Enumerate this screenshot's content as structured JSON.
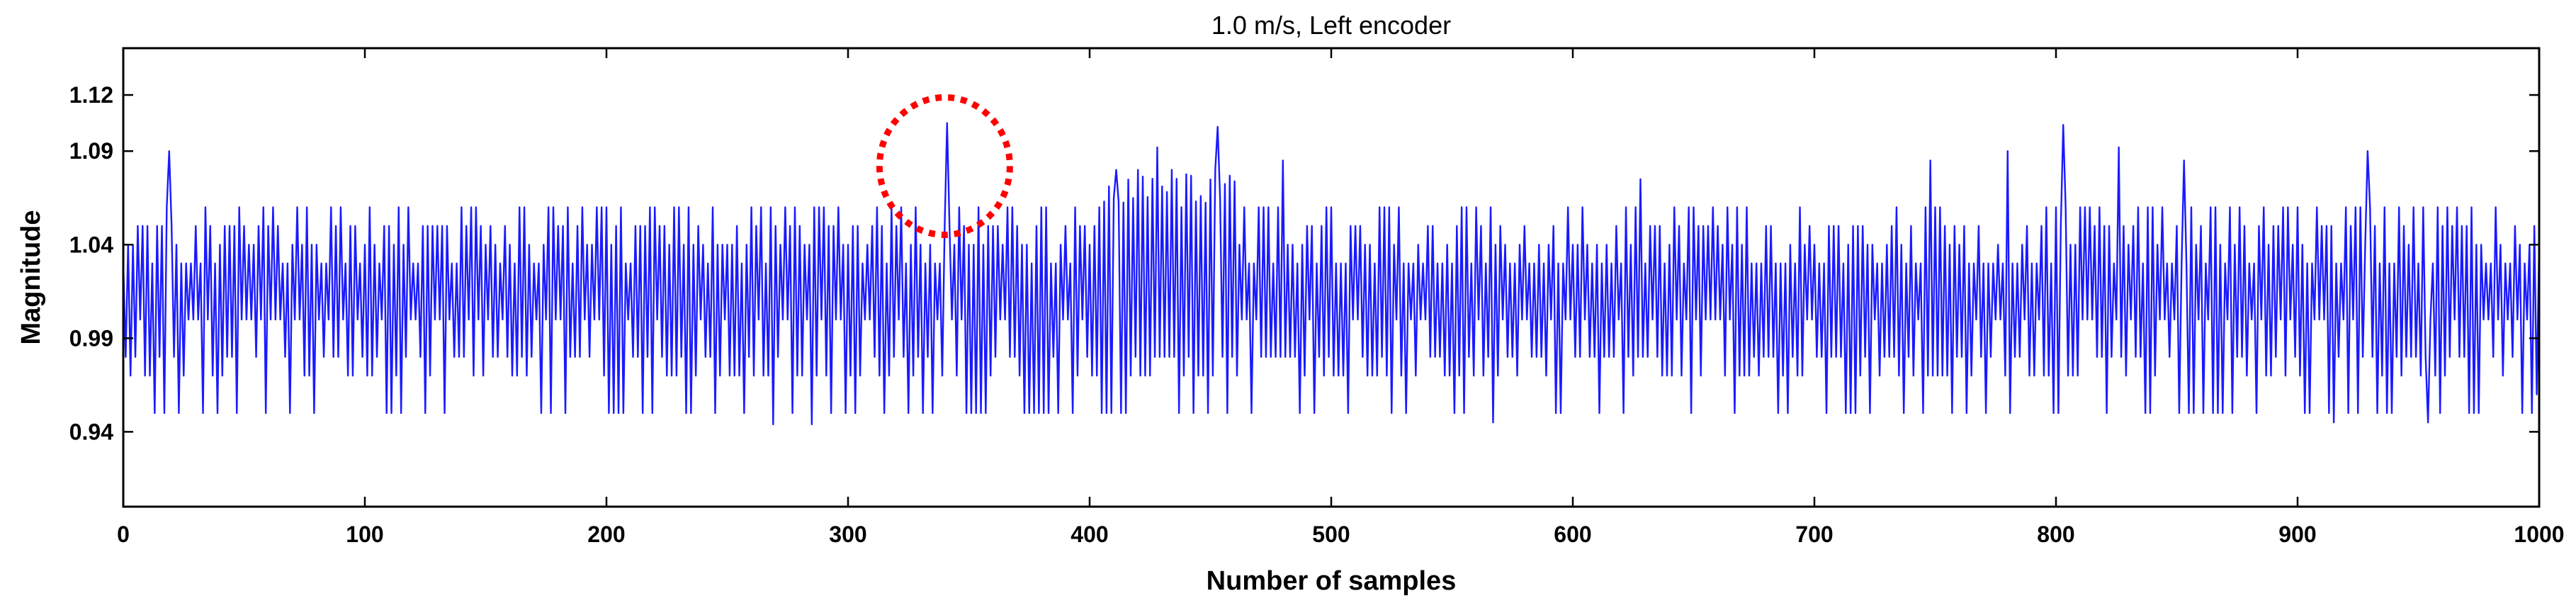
{
  "chart_data": {
    "type": "line",
    "title": "1.0 m/s, Left encoder",
    "xlabel": "Number of samples",
    "ylabel": "Magnitude",
    "xlim": [
      0,
      1000
    ],
    "ylim": [
      0.9,
      1.145
    ],
    "xticks": [
      0,
      100,
      200,
      300,
      400,
      500,
      600,
      700,
      800,
      900,
      1000
    ],
    "yticks": [
      0.94,
      0.99,
      1.04,
      1.09,
      1.12
    ],
    "ytick_labels": [
      "0.94",
      "0.99",
      "1.04",
      "1.09",
      "1.12"
    ],
    "grid": false,
    "line_color": "#1a1aff",
    "highlight": {
      "x": 340,
      "y": 1.082,
      "color": "#ff0000",
      "style": "dotted"
    },
    "levels": [
      0.95,
      0.97,
      0.98,
      1.0,
      1.02,
      1.03,
      1.04,
      1.05,
      1.06
    ],
    "n_samples": 1001,
    "spikes": [
      {
        "x": 19,
        "y": 1.09
      },
      {
        "x": 341,
        "y": 1.105
      },
      {
        "x": 411,
        "y": 1.08
      },
      {
        "x": 420,
        "y": 1.08
      },
      {
        "x": 428,
        "y": 1.092
      },
      {
        "x": 434,
        "y": 1.08
      },
      {
        "x": 453,
        "y": 1.103
      },
      {
        "x": 480,
        "y": 1.085
      },
      {
        "x": 628,
        "y": 1.075
      },
      {
        "x": 748,
        "y": 1.085
      },
      {
        "x": 780,
        "y": 1.09
      },
      {
        "x": 803,
        "y": 1.104
      },
      {
        "x": 826,
        "y": 1.092
      },
      {
        "x": 853,
        "y": 1.085
      },
      {
        "x": 929,
        "y": 1.09
      },
      {
        "x": 269,
        "y": 0.944
      },
      {
        "x": 285,
        "y": 0.944
      },
      {
        "x": 567,
        "y": 0.945
      },
      {
        "x": 915,
        "y": 0.945
      },
      {
        "x": 954,
        "y": 0.945
      },
      {
        "x": 999,
        "y": 0.96
      }
    ]
  }
}
